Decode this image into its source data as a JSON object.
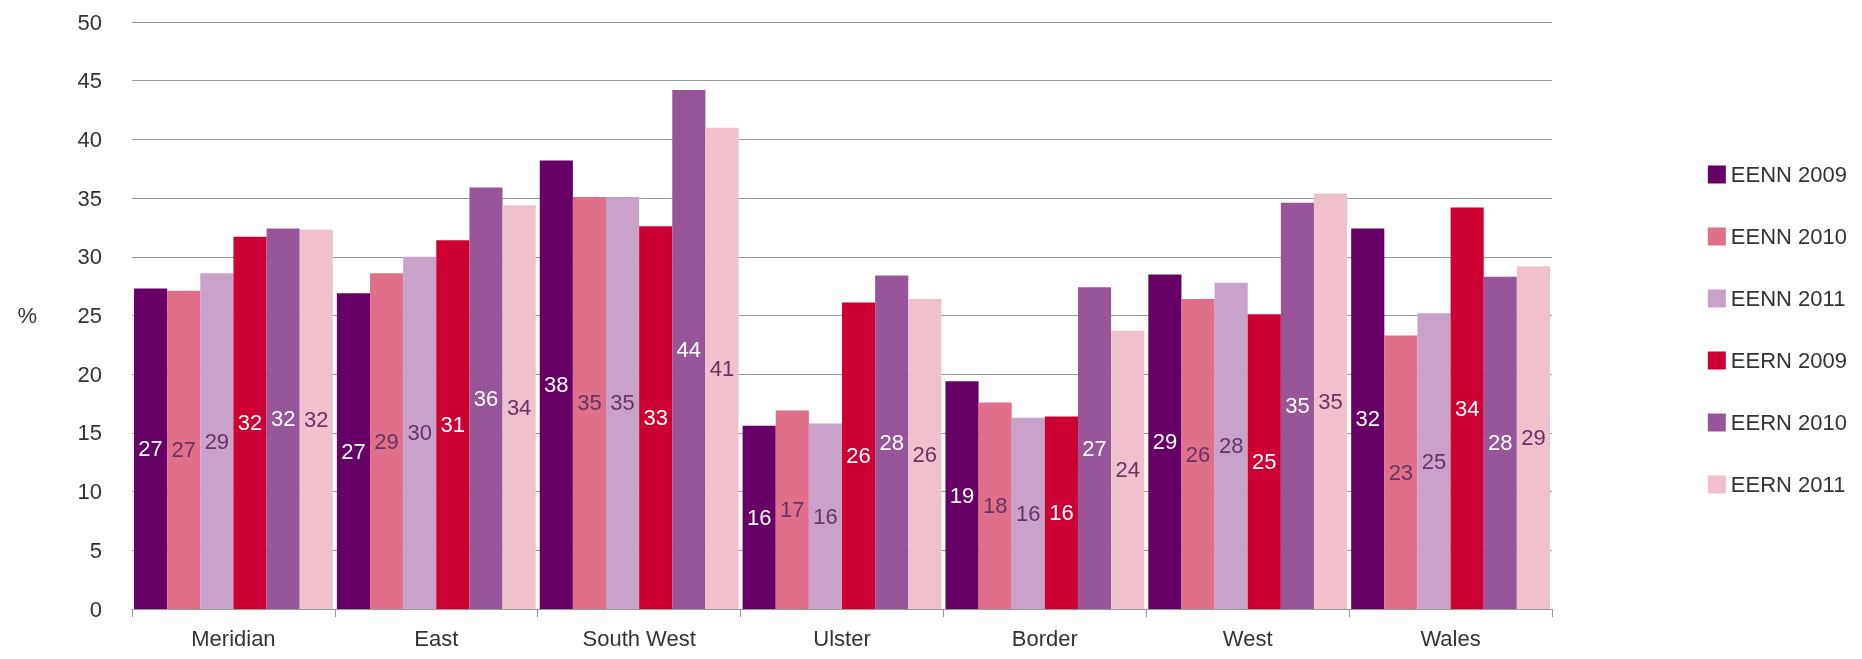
{
  "chart_data": {
    "type": "bar",
    "ylabel": "%",
    "categories": [
      "Meridian",
      "East",
      "South West",
      "Ulster",
      "Border",
      "West",
      "Wales"
    ],
    "series": [
      {
        "name": "EENN 2009",
        "color": "#660066",
        "values": [
          27.3,
          26.9,
          38.2,
          15.6,
          19.4,
          28.5,
          32.4
        ],
        "value_labels": [
          "27",
          "27",
          "38",
          "16",
          "19",
          "29",
          "32"
        ]
      },
      {
        "name": "EENN 2010",
        "color": "#e0708a",
        "values": [
          27.1,
          28.6,
          35.1,
          16.9,
          17.6,
          26.4,
          23.3
        ],
        "value_labels": [
          "27",
          "29",
          "35",
          "17",
          "18",
          "26",
          "23"
        ]
      },
      {
        "name": "EENN 2011",
        "color": "#c8a2c8",
        "values": [
          28.6,
          30.0,
          35.1,
          15.8,
          16.3,
          27.8,
          25.2
        ],
        "value_labels": [
          "29",
          "30",
          "35",
          "16",
          "16",
          "28",
          "25"
        ]
      },
      {
        "name": "EERN 2009",
        "color": "#cc0033",
        "values": [
          31.7,
          31.4,
          32.6,
          26.1,
          16.4,
          25.1,
          34.2
        ],
        "value_labels": [
          "32",
          "31",
          "33",
          "26",
          "16",
          "25",
          "34"
        ]
      },
      {
        "name": "EERN 2010",
        "color": "#995599",
        "values": [
          32.4,
          35.9,
          44.2,
          28.4,
          27.4,
          34.6,
          28.3
        ],
        "value_labels": [
          "32",
          "36",
          "44",
          "28",
          "27",
          "35",
          "28"
        ]
      },
      {
        "name": "EERN 2011",
        "color": "#f0c0cc",
        "values": [
          32.3,
          34.4,
          41.0,
          26.4,
          23.7,
          35.4,
          29.2
        ],
        "value_labels": [
          "32",
          "34",
          "41",
          "26",
          "24",
          "35",
          "29"
        ]
      }
    ],
    "ylim": [
      0,
      50
    ],
    "yticks": [
      0,
      5,
      10,
      15,
      20,
      25,
      30,
      35,
      40,
      45,
      50
    ],
    "grid": "y",
    "legend": "right"
  }
}
